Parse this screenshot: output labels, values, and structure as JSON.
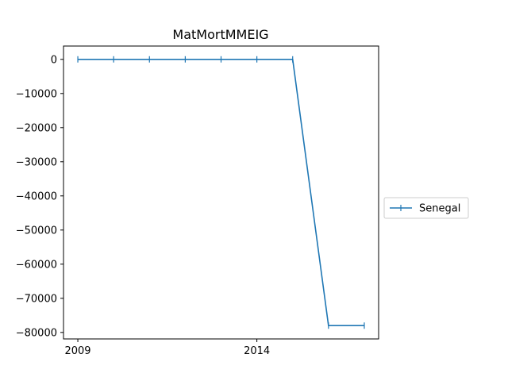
{
  "chart_data": {
    "type": "line",
    "title": "MatMortMMEIG",
    "xlabel": "",
    "ylabel": "",
    "x": [
      2009,
      2010,
      2011,
      2012,
      2013,
      2014,
      2015,
      2016,
      2017
    ],
    "series": [
      {
        "name": "Senegal",
        "color": "#1f77b4",
        "marker": "vertical-tick",
        "values": [
          0,
          0,
          0,
          0,
          0,
          0,
          0,
          -78000,
          -78000
        ]
      }
    ],
    "xticks": [
      2009,
      2014
    ],
    "xtick_labels": [
      "2009",
      "2014"
    ],
    "yticks": [
      0,
      -10000,
      -20000,
      -30000,
      -40000,
      -50000,
      -60000,
      -70000,
      -80000
    ],
    "ytick_labels": [
      "0",
      "−10000",
      "−20000",
      "−30000",
      "−40000",
      "−50000",
      "−60000",
      "−70000",
      "−80000"
    ],
    "xlim": [
      2008.6,
      2017.4
    ],
    "ylim": [
      -81900,
      3900
    ],
    "grid": false,
    "legend_position": "right, outside plot, vertically centered"
  }
}
